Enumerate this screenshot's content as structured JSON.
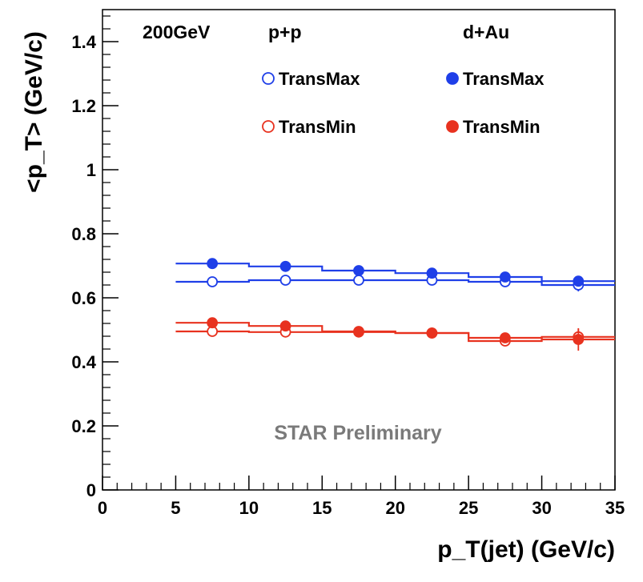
{
  "chart_data": {
    "type": "scatter",
    "title": "",
    "xlabel": "p_T(jet) (GeV/c)",
    "ylabel": "<p_T> (GeV/c)",
    "xlim": [
      0,
      35
    ],
    "ylim": [
      0,
      1.5
    ],
    "x_ticks": [
      "0",
      "5",
      "10",
      "15",
      "20",
      "25",
      "30",
      "35"
    ],
    "y_ticks": [
      "0",
      "0.2",
      "0.4",
      "0.6",
      "0.8",
      "1",
      "1.2",
      "1.4"
    ],
    "x_bin_centers": [
      7.5,
      12.5,
      17.5,
      22.5,
      27.5,
      32.5
    ],
    "x_bin_edges": [
      5,
      10,
      15,
      20,
      25,
      30,
      35
    ],
    "header": {
      "energy": "200GeV",
      "pp": "p+p",
      "dau": "d+Au"
    },
    "annotation": "STAR Preliminary",
    "colors": {
      "blue": "#1f3fe8",
      "red": "#e8321f"
    },
    "series": [
      {
        "name": "TransMax",
        "system": "p+p",
        "color": "#1f3fe8",
        "marker": "open",
        "values": [
          0.65,
          0.655,
          0.655,
          0.655,
          0.65,
          0.64
        ],
        "errors": [
          0.006,
          0.006,
          0.007,
          0.008,
          0.01,
          0.02
        ]
      },
      {
        "name": "TransMax",
        "system": "d+Au",
        "color": "#1f3fe8",
        "marker": "filled",
        "values": [
          0.707,
          0.698,
          0.685,
          0.677,
          0.665,
          0.652
        ],
        "errors": [
          0.006,
          0.006,
          0.007,
          0.008,
          0.01,
          0.015
        ]
      },
      {
        "name": "TransMin",
        "system": "p+p",
        "color": "#e8321f",
        "marker": "open",
        "values": [
          0.495,
          0.493,
          0.493,
          0.49,
          0.465,
          0.478
        ],
        "errors": [
          0.006,
          0.006,
          0.007,
          0.008,
          0.012,
          0.025
        ]
      },
      {
        "name": "TransMin",
        "system": "d+Au",
        "color": "#e8321f",
        "marker": "filled",
        "values": [
          0.522,
          0.512,
          0.495,
          0.49,
          0.475,
          0.47
        ],
        "errors": [
          0.006,
          0.006,
          0.007,
          0.008,
          0.012,
          0.035
        ]
      }
    ],
    "legend": [
      {
        "label": "TransMax",
        "series_index": 0
      },
      {
        "label": "TransMax",
        "series_index": 1
      },
      {
        "label": "TransMin",
        "series_index": 2
      },
      {
        "label": "TransMin",
        "series_index": 3
      }
    ],
    "legend_position": "top"
  }
}
